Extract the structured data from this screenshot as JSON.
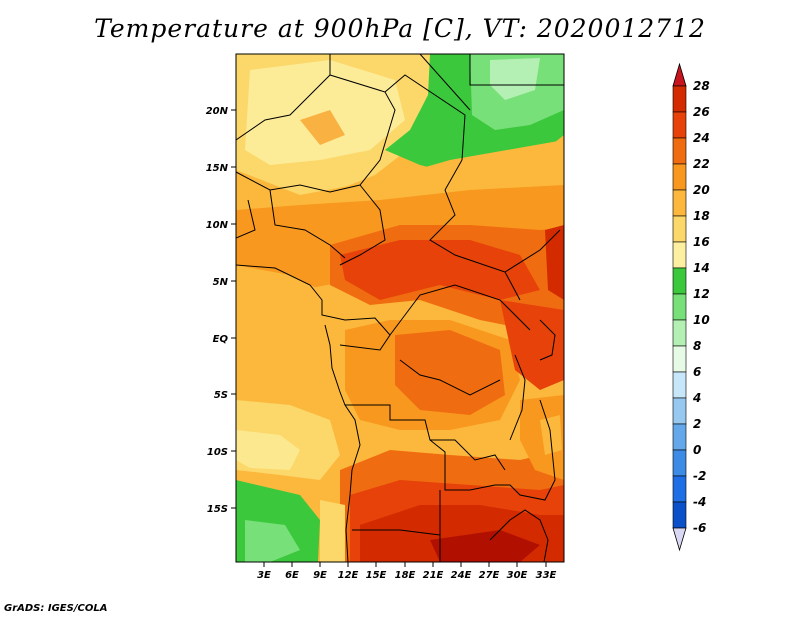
{
  "title": "Temperature at 900hPa [C], VT: 2020012712",
  "footer": "GrADS: IGES/COLA",
  "map": {
    "lat_labels": [
      "20N",
      "15N",
      "10N",
      "5N",
      "EQ",
      "5S",
      "10S",
      "15S"
    ],
    "lon_labels": [
      "3E",
      "6E",
      "9E",
      "12E",
      "15E",
      "18E",
      "21E",
      "24E",
      "27E",
      "30E",
      "33E"
    ]
  },
  "colorbar": {
    "ticks": [
      "28",
      "26",
      "24",
      "22",
      "20",
      "18",
      "16",
      "14",
      "12",
      "10",
      "8",
      "6",
      "4",
      "2",
      "0",
      "-2",
      "-4",
      "-6"
    ],
    "colors": [
      "#9a0000",
      "#d42a00",
      "#e6420a",
      "#f06c10",
      "#f8981e",
      "#fcb83c",
      "#fcd76a",
      "#fcf0a0",
      "#3cc83c",
      "#78e078",
      "#b4f0b4",
      "#e6fae6",
      "#c8e6fa",
      "#96c8f0",
      "#64a8ea",
      "#3c8ce6",
      "#1e6ee6",
      "#0a50c8",
      "#08288c",
      "#d8d8f4"
    ],
    "top_arrow_color": "#c8141e",
    "bottom_arrow_color": "#d8d8f4"
  }
}
